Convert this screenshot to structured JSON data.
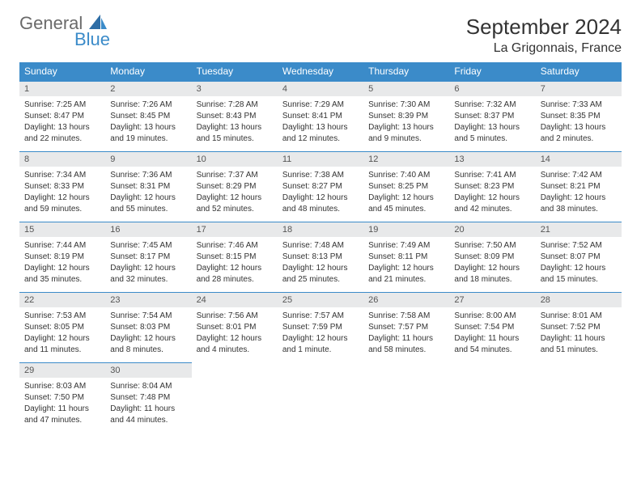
{
  "logo": {
    "text_top": "General",
    "text_bottom": "Blue"
  },
  "title": {
    "month": "September 2024",
    "location": "La Grigonnais, France"
  },
  "weekdays": [
    "Sunday",
    "Monday",
    "Tuesday",
    "Wednesday",
    "Thursday",
    "Friday",
    "Saturday"
  ],
  "colors": {
    "header_bg": "#3b8bc9",
    "header_text": "#ffffff",
    "daynum_bg": "#e8e9ea",
    "border": "#3b8bc9",
    "text": "#333333",
    "logo_gray": "#6a6a6a",
    "logo_blue": "#3b8bc9"
  },
  "days": [
    {
      "n": "1",
      "sunrise": "Sunrise: 7:25 AM",
      "sunset": "Sunset: 8:47 PM",
      "daylight": "Daylight: 13 hours and 22 minutes."
    },
    {
      "n": "2",
      "sunrise": "Sunrise: 7:26 AM",
      "sunset": "Sunset: 8:45 PM",
      "daylight": "Daylight: 13 hours and 19 minutes."
    },
    {
      "n": "3",
      "sunrise": "Sunrise: 7:28 AM",
      "sunset": "Sunset: 8:43 PM",
      "daylight": "Daylight: 13 hours and 15 minutes."
    },
    {
      "n": "4",
      "sunrise": "Sunrise: 7:29 AM",
      "sunset": "Sunset: 8:41 PM",
      "daylight": "Daylight: 13 hours and 12 minutes."
    },
    {
      "n": "5",
      "sunrise": "Sunrise: 7:30 AM",
      "sunset": "Sunset: 8:39 PM",
      "daylight": "Daylight: 13 hours and 9 minutes."
    },
    {
      "n": "6",
      "sunrise": "Sunrise: 7:32 AM",
      "sunset": "Sunset: 8:37 PM",
      "daylight": "Daylight: 13 hours and 5 minutes."
    },
    {
      "n": "7",
      "sunrise": "Sunrise: 7:33 AM",
      "sunset": "Sunset: 8:35 PM",
      "daylight": "Daylight: 13 hours and 2 minutes."
    },
    {
      "n": "8",
      "sunrise": "Sunrise: 7:34 AM",
      "sunset": "Sunset: 8:33 PM",
      "daylight": "Daylight: 12 hours and 59 minutes."
    },
    {
      "n": "9",
      "sunrise": "Sunrise: 7:36 AM",
      "sunset": "Sunset: 8:31 PM",
      "daylight": "Daylight: 12 hours and 55 minutes."
    },
    {
      "n": "10",
      "sunrise": "Sunrise: 7:37 AM",
      "sunset": "Sunset: 8:29 PM",
      "daylight": "Daylight: 12 hours and 52 minutes."
    },
    {
      "n": "11",
      "sunrise": "Sunrise: 7:38 AM",
      "sunset": "Sunset: 8:27 PM",
      "daylight": "Daylight: 12 hours and 48 minutes."
    },
    {
      "n": "12",
      "sunrise": "Sunrise: 7:40 AM",
      "sunset": "Sunset: 8:25 PM",
      "daylight": "Daylight: 12 hours and 45 minutes."
    },
    {
      "n": "13",
      "sunrise": "Sunrise: 7:41 AM",
      "sunset": "Sunset: 8:23 PM",
      "daylight": "Daylight: 12 hours and 42 minutes."
    },
    {
      "n": "14",
      "sunrise": "Sunrise: 7:42 AM",
      "sunset": "Sunset: 8:21 PM",
      "daylight": "Daylight: 12 hours and 38 minutes."
    },
    {
      "n": "15",
      "sunrise": "Sunrise: 7:44 AM",
      "sunset": "Sunset: 8:19 PM",
      "daylight": "Daylight: 12 hours and 35 minutes."
    },
    {
      "n": "16",
      "sunrise": "Sunrise: 7:45 AM",
      "sunset": "Sunset: 8:17 PM",
      "daylight": "Daylight: 12 hours and 32 minutes."
    },
    {
      "n": "17",
      "sunrise": "Sunrise: 7:46 AM",
      "sunset": "Sunset: 8:15 PM",
      "daylight": "Daylight: 12 hours and 28 minutes."
    },
    {
      "n": "18",
      "sunrise": "Sunrise: 7:48 AM",
      "sunset": "Sunset: 8:13 PM",
      "daylight": "Daylight: 12 hours and 25 minutes."
    },
    {
      "n": "19",
      "sunrise": "Sunrise: 7:49 AM",
      "sunset": "Sunset: 8:11 PM",
      "daylight": "Daylight: 12 hours and 21 minutes."
    },
    {
      "n": "20",
      "sunrise": "Sunrise: 7:50 AM",
      "sunset": "Sunset: 8:09 PM",
      "daylight": "Daylight: 12 hours and 18 minutes."
    },
    {
      "n": "21",
      "sunrise": "Sunrise: 7:52 AM",
      "sunset": "Sunset: 8:07 PM",
      "daylight": "Daylight: 12 hours and 15 minutes."
    },
    {
      "n": "22",
      "sunrise": "Sunrise: 7:53 AM",
      "sunset": "Sunset: 8:05 PM",
      "daylight": "Daylight: 12 hours and 11 minutes."
    },
    {
      "n": "23",
      "sunrise": "Sunrise: 7:54 AM",
      "sunset": "Sunset: 8:03 PM",
      "daylight": "Daylight: 12 hours and 8 minutes."
    },
    {
      "n": "24",
      "sunrise": "Sunrise: 7:56 AM",
      "sunset": "Sunset: 8:01 PM",
      "daylight": "Daylight: 12 hours and 4 minutes."
    },
    {
      "n": "25",
      "sunrise": "Sunrise: 7:57 AM",
      "sunset": "Sunset: 7:59 PM",
      "daylight": "Daylight: 12 hours and 1 minute."
    },
    {
      "n": "26",
      "sunrise": "Sunrise: 7:58 AM",
      "sunset": "Sunset: 7:57 PM",
      "daylight": "Daylight: 11 hours and 58 minutes."
    },
    {
      "n": "27",
      "sunrise": "Sunrise: 8:00 AM",
      "sunset": "Sunset: 7:54 PM",
      "daylight": "Daylight: 11 hours and 54 minutes."
    },
    {
      "n": "28",
      "sunrise": "Sunrise: 8:01 AM",
      "sunset": "Sunset: 7:52 PM",
      "daylight": "Daylight: 11 hours and 51 minutes."
    },
    {
      "n": "29",
      "sunrise": "Sunrise: 8:03 AM",
      "sunset": "Sunset: 7:50 PM",
      "daylight": "Daylight: 11 hours and 47 minutes."
    },
    {
      "n": "30",
      "sunrise": "Sunrise: 8:04 AM",
      "sunset": "Sunset: 7:48 PM",
      "daylight": "Daylight: 11 hours and 44 minutes."
    }
  ]
}
